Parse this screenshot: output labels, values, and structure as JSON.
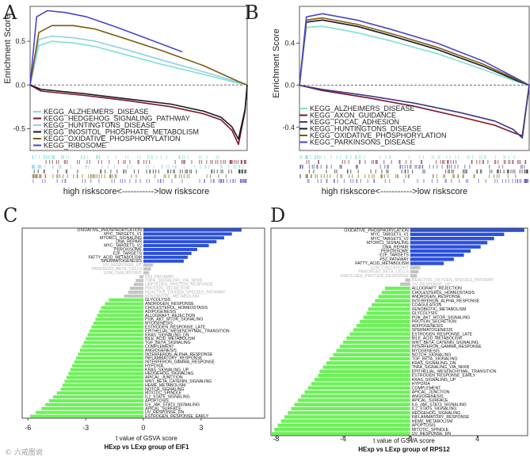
{
  "panels": {
    "a": "A",
    "b": "B",
    "c": "C",
    "d": "D"
  },
  "gsea_common": {
    "ylabel": "Enrichment Score",
    "xlabel": "high riskscore<----------->low riskscore"
  },
  "watermark": "© 六戒图说",
  "chart_data": [
    {
      "type": "line",
      "panel": "A",
      "ylabel": "Enrichment Score",
      "xlabel": "high riskscore<----------->low riskscore",
      "x_range": [
        0,
        100
      ],
      "ylim": [
        -0.75,
        0.9
      ],
      "yticks": [
        0.5,
        0.0,
        -0.5
      ],
      "ytick_labels": [
        "0.5",
        "0.0",
        "-0.5"
      ],
      "series": [
        {
          "name": "KEGG_ALZHEIMERS_DISEASE",
          "color": "#7fe0d4",
          "x": [
            0,
            4,
            10,
            20,
            30,
            45,
            60,
            80,
            96,
            100
          ],
          "values": [
            0.0,
            0.45,
            0.5,
            0.48,
            0.44,
            0.34,
            0.24,
            0.12,
            0.02,
            0.0
          ]
        },
        {
          "name": "KEGG_HEDGEHOG_SIGNALING_PATHWAY",
          "color": "#7a1428",
          "x": [
            0,
            5,
            25,
            45,
            65,
            80,
            88,
            93,
            96,
            99,
            100
          ],
          "values": [
            0.0,
            -0.07,
            -0.12,
            -0.18,
            -0.25,
            -0.33,
            -0.4,
            -0.52,
            -0.68,
            -0.3,
            0.0
          ]
        },
        {
          "name": "KEGG_HUNTINGTONS_DISEASE",
          "color": "#8ed0e8",
          "x": [
            0,
            4,
            10,
            20,
            30,
            45,
            60,
            80,
            96,
            100
          ],
          "values": [
            0.0,
            0.52,
            0.56,
            0.54,
            0.5,
            0.4,
            0.29,
            0.15,
            0.03,
            0.0
          ]
        },
        {
          "name": "KEGG_INOSITOL_PHOSPHATE_METABOLISM",
          "color": "#1a1a1a",
          "x": [
            0,
            5,
            25,
            45,
            65,
            80,
            88,
            93,
            96,
            99,
            100
          ],
          "values": [
            0.0,
            -0.05,
            -0.1,
            -0.16,
            -0.22,
            -0.3,
            -0.37,
            -0.48,
            -0.62,
            -0.28,
            0.0
          ]
        },
        {
          "name": "KEGG_OXIDATIVE_PHOSPHORYLATION",
          "color": "#7a5a10",
          "x": [
            0,
            4,
            10,
            20,
            30,
            45,
            60,
            80,
            96,
            100
          ],
          "values": [
            0.0,
            0.6,
            0.68,
            0.68,
            0.64,
            0.52,
            0.4,
            0.22,
            0.04,
            0.0
          ]
        },
        {
          "name": "KEGG_RIBOSOME",
          "color": "#4a46c8",
          "x": [
            0,
            3,
            8,
            16,
            26,
            40,
            55,
            70
          ],
          "values": [
            0.0,
            0.78,
            0.85,
            0.83,
            0.78,
            0.66,
            0.52,
            0.38
          ]
        }
      ]
    },
    {
      "type": "line",
      "panel": "B",
      "ylabel": "Enrichment Score",
      "xlabel": "high riskscore<----------->low riskscore",
      "x_range": [
        0,
        100
      ],
      "ylim": [
        -0.62,
        0.75
      ],
      "yticks": [
        0.4,
        0.0,
        -0.4
      ],
      "ytick_labels": [
        "0.4",
        "0.0",
        "-0.4"
      ],
      "series": [
        {
          "name": "KEGG_ALZHEIMERS_DISEASE",
          "color": "#7fe0d4",
          "x": [
            0,
            3,
            10,
            25,
            40,
            60,
            80,
            95,
            100
          ],
          "values": [
            0.0,
            0.55,
            0.56,
            0.5,
            0.42,
            0.3,
            0.15,
            0.03,
            0.0
          ]
        },
        {
          "name": "KEGG_AXON_GUIDANCE",
          "color": "#7a1428",
          "x": [
            0,
            10,
            30,
            50,
            70,
            85,
            93,
            97,
            100
          ],
          "values": [
            0.0,
            -0.05,
            -0.12,
            -0.2,
            -0.3,
            -0.38,
            -0.45,
            -0.48,
            0.0
          ]
        },
        {
          "name": "KEGG_FOCAL_ADHESION",
          "color": "#3a3a8a",
          "x": [
            0,
            10,
            30,
            50,
            70,
            85,
            93,
            97,
            100
          ],
          "values": [
            0.0,
            -0.04,
            -0.1,
            -0.17,
            -0.26,
            -0.34,
            -0.42,
            -0.5,
            0.0
          ]
        },
        {
          "name": "KEGG_HUNTINGTONS_DISEASE",
          "color": "#1a1a1a",
          "x": [
            0,
            3,
            10,
            25,
            40,
            60,
            80,
            95,
            100
          ],
          "values": [
            0.0,
            0.6,
            0.62,
            0.56,
            0.47,
            0.34,
            0.18,
            0.04,
            0.0
          ]
        },
        {
          "name": "KEGG_OXIDATIVE_PHOSPHORYLATION",
          "color": "#7a5a10",
          "x": [
            0,
            3,
            10,
            25,
            40,
            60,
            80,
            95,
            100
          ],
          "values": [
            0.0,
            0.62,
            0.64,
            0.58,
            0.49,
            0.36,
            0.2,
            0.05,
            0.0
          ]
        },
        {
          "name": "KEGG_PARKINSONS_DISEASE",
          "color": "#4a46c8",
          "x": [
            0,
            3,
            10,
            25,
            40,
            60,
            80,
            95,
            100
          ],
          "values": [
            0.0,
            0.65,
            0.68,
            0.62,
            0.53,
            0.4,
            0.23,
            0.06,
            0.0
          ]
        }
      ]
    },
    {
      "type": "bar",
      "panel": "C",
      "orientation": "horizontal",
      "xlabel": "t value of GSVA score",
      "subtitle": "HExp vs LExp group of EIF1",
      "xlim": [
        -6.3,
        6.3
      ],
      "xticks": [
        -6,
        -3,
        0,
        3
      ],
      "xtick_labels": [
        "-6",
        "-3",
        "0",
        "3"
      ],
      "colors": {
        "pos": "#2c50d8",
        "neg": "#6ef05a",
        "ns": "#c4c4c4"
      },
      "categories": [
        "OXIDATIVE_PHOSPHORYLATION",
        "MYC_TARGETS_V1",
        "MTORC1_SIGNALING",
        "DNA_REPAIR",
        "MYC_TARGETS_V2",
        "PEROXISOME",
        "E2F_TARGETS",
        "FATTY_ACID_METABOLISM",
        "SPERMATOGENESIS",
        "UV_RESPONSE_UP",
        "PANCREAS_BETA_CELLS",
        "G2M_CHECKPOINT",
        "P53_PATHWAY",
        "TNFA_SIGNALING_VIA_NFKB",
        "UNFOLDED_PROTEIN_RESPONSE",
        "PROTEIN_SECRETION",
        "REACTIVE_OXIGEN_SPECIES_PATHWAY",
        "XENOBIOTIC_METABOLISM",
        "GLYCOLYSIS",
        "ANDROGEN_RESPONSE",
        "CHOLESTEROL_HOMEOSTASIS",
        "ADIPOGENESIS",
        "ALLOGRAFT_REJECTION",
        "PI3K_AKT_MTOR_SIGNALING",
        "MYOGENESIS",
        "ESTROGEN_RESPONSE_LATE",
        "EPITHELIAL_MESENCHYMAL_TRANSITION",
        "KRAS_SIGNALING_DN",
        "BILE_ACID_METABOLISM",
        "TGF_BETA_SIGNALING",
        "COMPLEMENT",
        "ANGIOGENESIS",
        "INTERFERON_ALPHA_RESPONSE",
        "INFLAMMATORY_RESPONSE",
        "INTERFERON_GAMMA_RESPONSE",
        "HYPOXIA",
        "KRAS_SIGNALING_UP",
        "HEDGEHOG_SIGNALING",
        "APICAL_JUNCTION",
        "WNT_BETA_CATENIN_SIGNALING",
        "HEME_METABOLISM",
        "NOTCH_SIGNALING",
        "MITOTIC_SPINDLE",
        "IL2_STAT5_SIGNALING",
        "APOPTOSIS",
        "IL6_JAK_STAT3_SIGNALING",
        "APICAL_SURFACE",
        "UV_RESPONSE_DN",
        "ESTROGEN_RESPONSE_EARLY"
      ],
      "values": [
        5.1,
        4.6,
        4.2,
        3.8,
        3.4,
        2.8,
        2.5,
        2.3,
        2.1,
        0.5,
        0.4,
        0.3,
        -0.2,
        -0.4,
        -0.5,
        -0.7,
        -0.8,
        -1.0,
        -1.8,
        -2.0,
        -2.2,
        -2.3,
        -2.4,
        -2.5,
        -2.6,
        -2.7,
        -2.8,
        -2.9,
        -3.0,
        -3.1,
        -3.2,
        -3.3,
        -3.4,
        -3.5,
        -3.6,
        -3.7,
        -3.8,
        -3.9,
        -4.0,
        -4.1,
        -4.2,
        -4.3,
        -4.5,
        -4.7,
        -4.9,
        -5.1,
        -5.3,
        -5.6,
        -5.9
      ],
      "significant": [
        true,
        true,
        true,
        true,
        true,
        true,
        true,
        true,
        true,
        false,
        false,
        false,
        false,
        false,
        false,
        false,
        false,
        false,
        true,
        true,
        true,
        true,
        true,
        true,
        true,
        true,
        true,
        true,
        true,
        true,
        true,
        true,
        true,
        true,
        true,
        true,
        true,
        true,
        true,
        true,
        true,
        true,
        true,
        true,
        true,
        true,
        true,
        true,
        true
      ]
    },
    {
      "type": "bar",
      "panel": "D",
      "orientation": "horizontal",
      "xlabel": "t value of GSVA score",
      "subtitle": "HExp vs LExp group of RPS12",
      "xlim": [
        -8.3,
        7.0
      ],
      "xticks": [
        -8,
        -4,
        0,
        4
      ],
      "xtick_labels": [
        "-8",
        "-4",
        "0",
        "4"
      ],
      "colors": {
        "pos": "#2c50d8",
        "neg": "#6ef05a",
        "ns": "#c4c4c4"
      },
      "categories": [
        "OXIDATIVE_PHOSPHORYLATION",
        "MYC_TARGETS_V1",
        "MYC_TARGETS_V2",
        "MTORC1_SIGNALING",
        "DNA_REPAIR",
        "PEROXISOME",
        "E2F_TARGETS",
        "P53_PATHWAY",
        "FATTY_ACID_METABOLISM",
        "G2M_CHECKPOINT",
        "PANCREAS_BETA_CELLS",
        "UNFOLDED_PROTEIN_RESPONSE",
        "REACTIVE_OXYGEN_SPECIES_PATHWAY",
        "UV_RESPONSE_UP",
        "ALLOGRAFT_REJECTION",
        "CHOLESTEROL_HOMEOSTASIS",
        "ANDROGEN_RESPONSE",
        "INTERFERON_ALPHA_RESPONSE",
        "COAGULATION",
        "XENOBIOTIC_METABOLISM",
        "GLYCOLYSIS",
        "PI3K_AKT_MTOR_SIGNALING",
        "PROTEIN_SECRETION",
        "ADIPOGENESIS",
        "SPERMATOGENESIS",
        "ESTROGEN_RESPONSE_LATE",
        "BILE_ACID_METABOLISM",
        "WNT_BETA_CATENIN_SIGNALING",
        "INTERFERON_GAMMA_RESPONSE",
        "MYOGENESIS",
        "NOTCH_SIGNALING",
        "TGF_BETA_SIGNALING",
        "KRAS_SIGNALING_DN",
        "TNFA_SIGNALING_VIA_NFKB",
        "EPITHELIAL_MESENCHYMAL_TRANSITION",
        "ESTROGEN_RESPONSE_EARLY",
        "KRAS_SIGNALING_UP",
        "HYPOXIA",
        "COMPLEMENT",
        "APICAL_JUNCTION",
        "ANGIOGENESIS",
        "APICAL_SURFACE",
        "IL6_JAK_STAT3_SIGNALING",
        "IL2_STAT5_SIGNALING",
        "HEDGEHOG_SIGNALING",
        "INFLAMMATORY_RESPONSE",
        "HEME_METABOLISM",
        "APOPTOSIS",
        "MITOTIC_SPINDLE",
        "UV_RESPONSE_DN"
      ],
      "values": [
        6.8,
        5.6,
        5.0,
        4.6,
        4.2,
        3.6,
        3.2,
        2.6,
        2.0,
        0.6,
        0.5,
        0.4,
        -0.3,
        -0.6,
        -1.5,
        -1.7,
        -1.9,
        -2.1,
        -2.3,
        -2.5,
        -2.6,
        -2.8,
        -3.0,
        -3.2,
        -3.4,
        -3.6,
        -3.8,
        -4.0,
        -4.2,
        -4.4,
        -4.6,
        -4.8,
        -5.0,
        -5.2,
        -5.4,
        -5.5,
        -5.7,
        -5.9,
        -6.1,
        -6.3,
        -6.5,
        -6.7,
        -6.9,
        -7.1,
        -7.3,
        -7.5,
        -7.7,
        -7.9,
        -8.1,
        -8.3
      ],
      "significant": [
        true,
        true,
        true,
        true,
        true,
        true,
        true,
        true,
        true,
        false,
        false,
        false,
        false,
        false,
        true,
        true,
        true,
        true,
        true,
        true,
        true,
        true,
        true,
        true,
        true,
        true,
        true,
        true,
        true,
        true,
        true,
        true,
        true,
        true,
        true,
        true,
        true,
        true,
        true,
        true,
        true,
        true,
        true,
        true,
        true,
        true,
        true,
        true,
        true,
        true
      ]
    }
  ]
}
